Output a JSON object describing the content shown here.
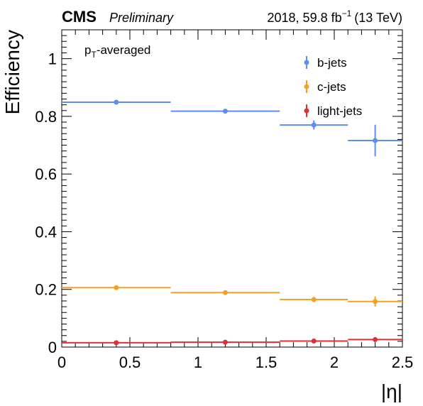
{
  "header": {
    "experiment": "CMS",
    "status": "Preliminary",
    "lumi_text": "2018, 59.8 fb",
    "lumi_exp": "−1",
    "energy": "(13 TeV)"
  },
  "annotation": {
    "base": "p",
    "sub": "T",
    "rest": "-averaged"
  },
  "chart_data": {
    "type": "scatter",
    "xlabel": "|η|",
    "ylabel": "Efficiency",
    "xlim": [
      0,
      2.5
    ],
    "ylim": [
      0,
      1.1
    ],
    "x_ticks": [
      {
        "value": 0,
        "label": "0"
      },
      {
        "value": 0.5,
        "label": "0.5"
      },
      {
        "value": 1,
        "label": "1"
      },
      {
        "value": 1.5,
        "label": "1.5"
      },
      {
        "value": 2,
        "label": "2"
      },
      {
        "value": 2.5,
        "label": "2.5"
      }
    ],
    "y_ticks": [
      {
        "value": 0,
        "label": "0"
      },
      {
        "value": 0.2,
        "label": "0.2"
      },
      {
        "value": 0.4,
        "label": "0.4"
      },
      {
        "value": 0.6,
        "label": "0.6"
      },
      {
        "value": 0.8,
        "label": "0.8"
      },
      {
        "value": 1,
        "label": "1"
      }
    ],
    "bins": [
      [
        0,
        0.8
      ],
      [
        0.8,
        1.6
      ],
      [
        1.6,
        2.1
      ],
      [
        2.1,
        2.5
      ]
    ],
    "x": [
      0.4,
      1.2,
      1.85,
      2.3
    ],
    "legend_position": "top-right",
    "series": [
      {
        "name": "b-jets",
        "color": "#5c8ef2",
        "values": [
          0.849,
          0.818,
          0.77,
          0.716
        ],
        "errors": [
          0.006,
          0.006,
          0.016,
          0.055
        ]
      },
      {
        "name": "c-jets",
        "color": "#f5a020",
        "values": [
          0.206,
          0.189,
          0.165,
          0.158
        ],
        "errors": [
          0.004,
          0.004,
          0.009,
          0.018
        ]
      },
      {
        "name": "light-jets",
        "color": "#e03033",
        "values": [
          0.015,
          0.017,
          0.021,
          0.026
        ],
        "errors": [
          0.001,
          0.001,
          0.002,
          0.003
        ]
      }
    ]
  }
}
